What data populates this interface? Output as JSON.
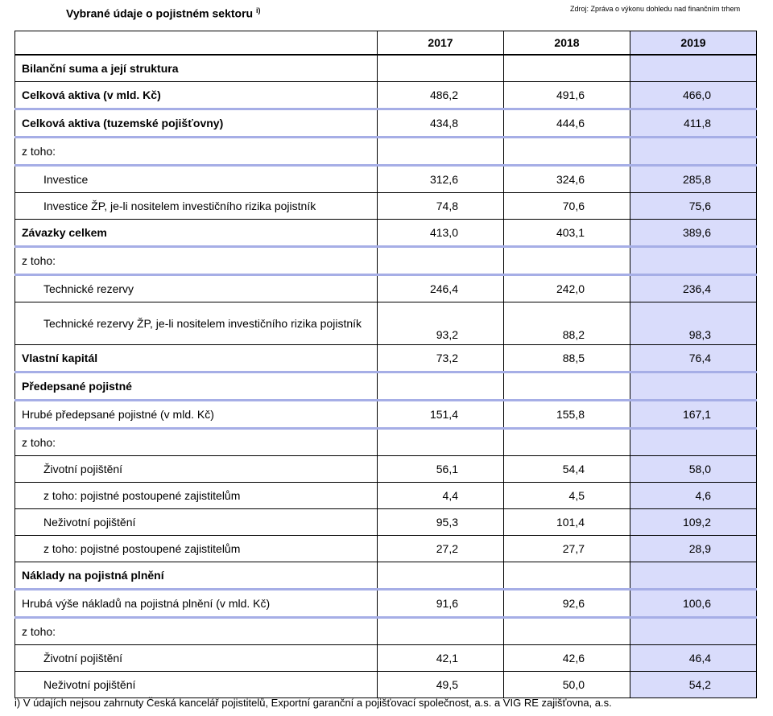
{
  "header": {
    "title": "Vybrané údaje o pojistném sektoru",
    "title_note": "i)",
    "source": "Zdroj: Zpráva o výkonu dohledu nad finančním trhem"
  },
  "colors": {
    "highlight_column": "#d9dcfb",
    "section_rule": "#a6aee6"
  },
  "table": {
    "columns": [
      "",
      "2017",
      "2018",
      "2019"
    ],
    "rows": [
      {
        "label": "Bilanční suma a její struktura",
        "bold": true,
        "indent": false,
        "values": [
          "",
          "",
          ""
        ]
      },
      {
        "label": "Celková aktiva (v mld. Kč)",
        "bold": true,
        "indent": false,
        "values": [
          "486,2",
          "491,6",
          "466,0"
        ]
      },
      {
        "label": "Celková aktiva (tuzemské pojišťovny)",
        "bold": true,
        "indent": false,
        "values": [
          "434,8",
          "444,6",
          "411,8"
        ]
      },
      {
        "label": "z toho:",
        "bold": false,
        "indent": false,
        "values": [
          "",
          "",
          ""
        ]
      },
      {
        "label": "Investice",
        "bold": false,
        "indent": true,
        "values": [
          "312,6",
          "324,6",
          "285,8"
        ]
      },
      {
        "label": "Investice ŽP, je-li nositelem investičního rizika pojistník",
        "bold": false,
        "indent": true,
        "values": [
          "74,8",
          "70,6",
          "75,6"
        ]
      },
      {
        "label": "Závazky celkem",
        "bold": true,
        "indent": false,
        "values": [
          "413,0",
          "403,1",
          "389,6"
        ]
      },
      {
        "label": "z toho:",
        "bold": false,
        "indent": false,
        "values": [
          "",
          "",
          ""
        ]
      },
      {
        "label": "Technické rezervy",
        "bold": false,
        "indent": true,
        "values": [
          "246,4",
          "242,0",
          "236,4"
        ]
      },
      {
        "label": "Technické rezervy ŽP, je-li nositelem investičního rizika pojistník",
        "bold": false,
        "indent": true,
        "values": [
          "93,2",
          "88,2",
          "98,3"
        ]
      },
      {
        "label": "Vlastní kapitál",
        "bold": true,
        "indent": false,
        "values": [
          "73,2",
          "88,5",
          "76,4"
        ]
      },
      {
        "label": "Předepsané pojistné",
        "bold": true,
        "indent": false,
        "values": [
          "",
          "",
          ""
        ]
      },
      {
        "label": "Hrubé předepsané pojistné (v mld. Kč)",
        "bold": false,
        "indent": false,
        "values": [
          "151,4",
          "155,8",
          "167,1"
        ]
      },
      {
        "label": "z toho:",
        "bold": false,
        "indent": false,
        "values": [
          "",
          "",
          ""
        ]
      },
      {
        "label": "Životní pojištění",
        "bold": false,
        "indent": true,
        "values": [
          "56,1",
          "54,4",
          "58,0"
        ]
      },
      {
        "label": "z toho: pojistné postoupené zajistitelům",
        "bold": false,
        "indent": true,
        "values": [
          "4,4",
          "4,5",
          "4,6"
        ]
      },
      {
        "label": "Neživotní pojištění",
        "bold": false,
        "indent": true,
        "values": [
          "95,3",
          "101,4",
          "109,2"
        ]
      },
      {
        "label": "z toho: pojistné postoupené zajistitelům",
        "bold": false,
        "indent": true,
        "values": [
          "27,2",
          "27,7",
          "28,9"
        ]
      },
      {
        "label": "Náklady na pojistná plnění",
        "bold": true,
        "indent": false,
        "values": [
          "",
          "",
          ""
        ]
      },
      {
        "label": "Hrubá výše nákladů na pojistná plnění (v mld. Kč)",
        "bold": false,
        "indent": false,
        "values": [
          "91,6",
          "92,6",
          "100,6"
        ]
      },
      {
        "label": "z toho:",
        "bold": false,
        "indent": false,
        "values": [
          "",
          "",
          ""
        ]
      },
      {
        "label": "Životní pojištění",
        "bold": false,
        "indent": true,
        "values": [
          "42,1",
          "42,6",
          "46,4"
        ]
      },
      {
        "label": "Neživotní pojištění",
        "bold": false,
        "indent": true,
        "values": [
          "49,5",
          "50,0",
          "54,2"
        ]
      }
    ]
  },
  "footnote": "i) V údajích nejsou zahrnuty Česká kancelář pojistitelů, Exportní garanční a pojišťovací společnost, a.s. a VIG RE zajišťovna, a.s."
}
